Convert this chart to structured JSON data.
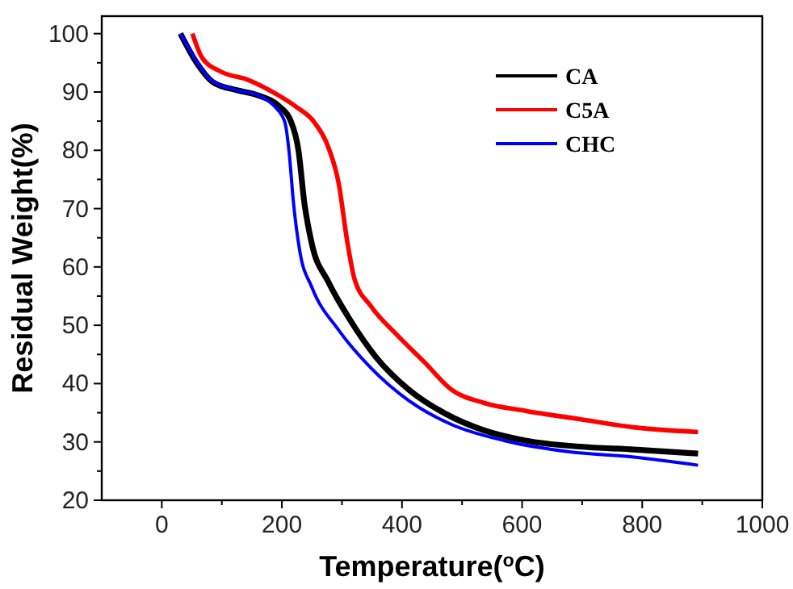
{
  "chart_data": {
    "type": "line",
    "xlabel": "Temperature($^{o}$C)",
    "ylabel": "Residual Weight(%)",
    "xlim": [
      -100,
      1000
    ],
    "ylim": [
      20,
      103
    ],
    "xticks": [
      0,
      {
        "value": 100,
        "label": null
      },
      200,
      {
        "value": 300,
        "label": null
      },
      400,
      {
        "value": 500,
        "label": null
      },
      600,
      {
        "value": 700,
        "label": null
      },
      800,
      {
        "value": 900,
        "label": null
      },
      1000
    ],
    "yticks": [
      20,
      {
        "value": 25,
        "label": null
      },
      30,
      {
        "value": 35,
        "label": null
      },
      40,
      {
        "value": 45,
        "label": null
      },
      50,
      {
        "value": 55,
        "label": null
      },
      60,
      {
        "value": 65,
        "label": null
      },
      70,
      {
        "value": 75,
        "label": null
      },
      80,
      {
        "value": 85,
        "label": null
      },
      90,
      {
        "value": 95,
        "label": null
      },
      100
    ],
    "legend": "top right",
    "grid": false,
    "marker": "none",
    "line_style": "solid",
    "series": [
      {
        "name": "CA",
        "color": "#000000",
        "x": [
          31,
          58,
          85,
          125,
          161,
          196,
          214,
          228,
          237,
          250,
          277,
          313,
          357,
          411,
          473,
          536,
          607,
          696,
          786,
          893
        ],
        "values": [
          100,
          95,
          91.7,
          90.3,
          89.4,
          87.5,
          85.2,
          79.7,
          71.3,
          63.9,
          57.5,
          51,
          44.5,
          39,
          34.8,
          32,
          30.2,
          29.2,
          28.7,
          28
        ]
      },
      {
        "name": "C5A",
        "color": "#ff0000",
        "x": [
          51,
          67,
          98,
          143,
          188,
          223,
          254,
          277,
          295,
          308,
          321,
          348,
          393,
          438,
          482,
          536,
          607,
          696,
          786,
          893
        ],
        "values": [
          100,
          95.9,
          93.5,
          92.1,
          89.8,
          87.5,
          84.8,
          80.6,
          74.1,
          64.9,
          57.9,
          53.3,
          48.2,
          43.6,
          39,
          36.7,
          35.3,
          33.9,
          32.5,
          31.7
        ]
      },
      {
        "name": "CHC",
        "color": "#0000ff",
        "x": [
          31,
          54,
          80,
          125,
          161,
          188,
          205,
          212,
          219,
          230,
          250,
          295,
          348,
          411,
          482,
          571,
          679,
          786,
          893
        ],
        "values": [
          100,
          95.9,
          92.2,
          90.3,
          89.4,
          87.5,
          84.8,
          79.7,
          71.3,
          62.6,
          56.5,
          49.1,
          42.7,
          37.1,
          33,
          30.2,
          28.3,
          27.4,
          26
        ]
      }
    ]
  }
}
